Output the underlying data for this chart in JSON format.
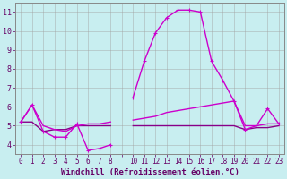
{
  "xlabel": "Windchill (Refroidissement éolien,°C)",
  "background_color": "#c8eef0",
  "grid_color": "#a0a0a0",
  "xlim": [
    -0.5,
    23.5
  ],
  "ylim": [
    3.5,
    11.5
  ],
  "yticks": [
    4,
    5,
    6,
    7,
    8,
    9,
    10,
    11
  ],
  "xtick_labels": [
    "0",
    "1",
    "2",
    "3",
    "4",
    "5",
    "6",
    "7",
    "8",
    "",
    "10",
    "11",
    "12",
    "13",
    "14",
    "15",
    "16",
    "17",
    "18",
    "19",
    "20",
    "21",
    "22",
    "23"
  ],
  "series_main": [
    5.2,
    6.1,
    4.7,
    4.4,
    4.4,
    5.1,
    3.7,
    3.8,
    4.0,
    null,
    6.5,
    8.4,
    9.9,
    10.7,
    11.1,
    11.1,
    11.0,
    8.4,
    7.4,
    6.3,
    4.8,
    5.0,
    5.9,
    5.1
  ],
  "series_smooth": [
    5.2,
    6.1,
    5.0,
    4.8,
    4.7,
    5.0,
    5.1,
    5.1,
    5.2,
    null,
    5.3,
    5.4,
    5.5,
    5.7,
    5.8,
    5.9,
    6.0,
    6.1,
    6.2,
    6.3,
    5.0,
    5.0,
    5.1,
    5.1
  ],
  "series_flat": [
    5.2,
    5.2,
    4.7,
    4.8,
    4.8,
    5.0,
    5.0,
    5.0,
    5.0,
    null,
    5.0,
    5.0,
    5.0,
    5.0,
    5.0,
    5.0,
    5.0,
    5.0,
    5.0,
    5.0,
    4.8,
    4.9,
    4.9,
    5.0
  ],
  "color_main": "#cc00cc",
  "color_smooth": "#cc00cc",
  "color_flat": "#880088",
  "marker_size": 3.5,
  "linewidth": 1.0
}
